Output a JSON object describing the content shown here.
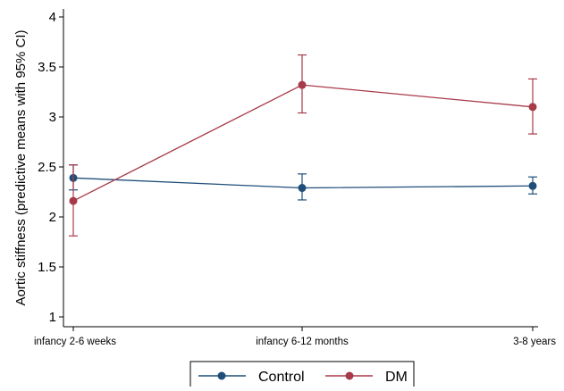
{
  "chart_data": {
    "type": "line",
    "title": "",
    "xlabel": "",
    "ylabel": "Aortic stiffness (predictive means with 95% CI)",
    "categories": [
      "infancy 2-6 weeks",
      "infancy 6-12 months",
      "3-8 years"
    ],
    "ylim": [
      1,
      4
    ],
    "yticks": [
      "1",
      "1.5",
      "2",
      "2.5",
      "3",
      "3.5",
      "4"
    ],
    "grid": false,
    "legend": {
      "position": "bottom",
      "entries": [
        "Control",
        "DM"
      ]
    },
    "series": [
      {
        "name": "Control",
        "color": "#1f4e79",
        "values": [
          2.39,
          2.29,
          2.31
        ],
        "ci_low": [
          2.27,
          2.17,
          2.23
        ],
        "ci_high": [
          2.52,
          2.43,
          2.4
        ]
      },
      {
        "name": "DM",
        "color": "#a83a4a",
        "values": [
          2.16,
          3.32,
          3.1
        ],
        "ci_low": [
          1.81,
          3.04,
          2.83
        ],
        "ci_high": [
          2.52,
          3.62,
          3.38
        ]
      }
    ]
  }
}
